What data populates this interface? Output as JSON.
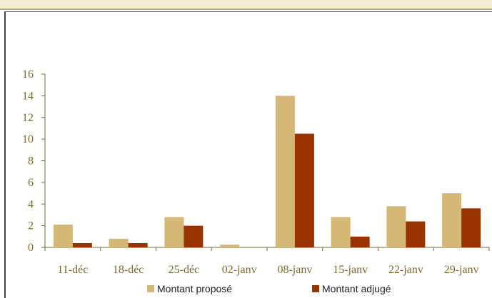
{
  "chart_data": {
    "type": "bar",
    "categories": [
      "11-déc",
      "18-déc",
      "25-déc",
      "02-janv",
      "08-janv",
      "15-janv",
      "22-janv",
      "29-janv"
    ],
    "series": [
      {
        "name": "Montant proposé",
        "values": [
          2.1,
          0.8,
          2.8,
          0.25,
          14.0,
          2.8,
          3.8,
          5.0
        ],
        "color": "#d5b876"
      },
      {
        "name": "Montant adjugé",
        "values": [
          0.4,
          0.4,
          2.0,
          0,
          10.5,
          1.0,
          2.4,
          3.6
        ],
        "color": "#993300"
      }
    ],
    "y_ticks": [
      "0",
      "2",
      "4",
      "6",
      "8",
      "10",
      "12",
      "14",
      "16"
    ],
    "ylim": [
      0,
      16
    ],
    "grid": false,
    "legend_position": "bottom"
  }
}
